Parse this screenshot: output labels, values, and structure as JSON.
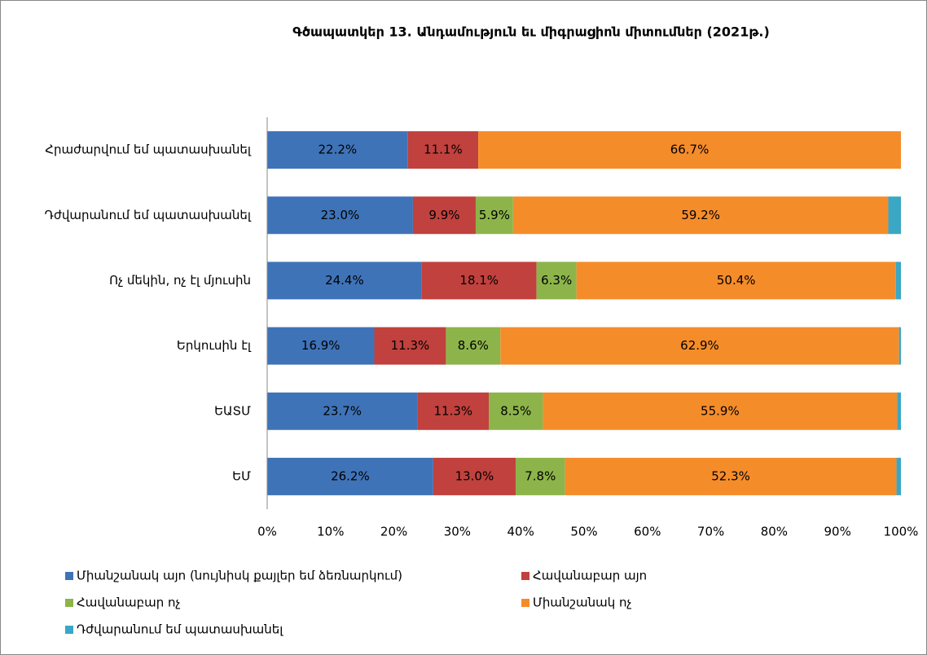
{
  "chart_data": {
    "type": "stacked_bar_horizontal",
    "title": "Գծապատկեր 13. Անդամություն եւ միգրացիոն միտումներ (2021թ.)",
    "categories": [
      "Հրաժարվում եմ պատասխանել",
      "Դժվարանում եմ պատասխանել",
      "Ոչ մեկին, ոչ էլ մյուսին",
      "Երկուսին էլ",
      "ԵԱՏՄ",
      "ԵՄ"
    ],
    "series": [
      {
        "name": "Միանշանակ այո (նույնիսկ քայլեր եմ ձեռնարկում)",
        "color": "#3f73b8",
        "values": [
          22.2,
          23.0,
          24.4,
          16.9,
          23.7,
          26.2
        ],
        "value_labels": [
          "22.2%",
          "23.0%",
          "24.4%",
          "16.9%",
          "23.7%",
          "26.2%"
        ]
      },
      {
        "name": "Հավանաբար այո",
        "color": "#c0413d",
        "values": [
          11.1,
          9.9,
          18.1,
          11.3,
          11.3,
          13.0
        ],
        "value_labels": [
          "11.1%",
          "9.9%",
          "18.1%",
          "11.3%",
          "11.3%",
          "13.0%"
        ]
      },
      {
        "name": "Հավանաբար ոչ",
        "color": "#8db44a",
        "values": [
          null,
          5.9,
          6.3,
          8.6,
          8.5,
          7.8
        ],
        "value_labels": [
          null,
          "5.9%",
          "6.3%",
          "8.6%",
          "8.5%",
          "7.8%"
        ]
      },
      {
        "name": "Միանշանակ ոչ",
        "color": "#f58c2a",
        "values": [
          66.7,
          59.2,
          50.4,
          62.9,
          55.9,
          52.3
        ],
        "value_labels": [
          "66.7%",
          "59.2%",
          "50.4%",
          "62.9%",
          "55.9%",
          "52.3%"
        ]
      },
      {
        "name": "Դժվարանում եմ պատասխանել",
        "color": "#3aa7c4",
        "values": [
          null,
          2.0,
          0.8,
          0.3,
          0.6,
          0.7
        ]
      }
    ],
    "xlim": [
      0,
      100
    ],
    "xticks": [
      {
        "value": 0,
        "label": "0%"
      },
      {
        "value": 10,
        "label": "10%"
      },
      {
        "value": 20,
        "label": "20%"
      },
      {
        "value": 30,
        "label": "30%"
      },
      {
        "value": 40,
        "label": "40%"
      },
      {
        "value": 50,
        "label": "50%"
      },
      {
        "value": 60,
        "label": "60%"
      },
      {
        "value": 70,
        "label": "70%"
      },
      {
        "value": 80,
        "label": "80%"
      },
      {
        "value": 90,
        "label": "90%"
      },
      {
        "value": 100,
        "label": "100%"
      }
    ],
    "grid": false,
    "legend": "bottom"
  }
}
